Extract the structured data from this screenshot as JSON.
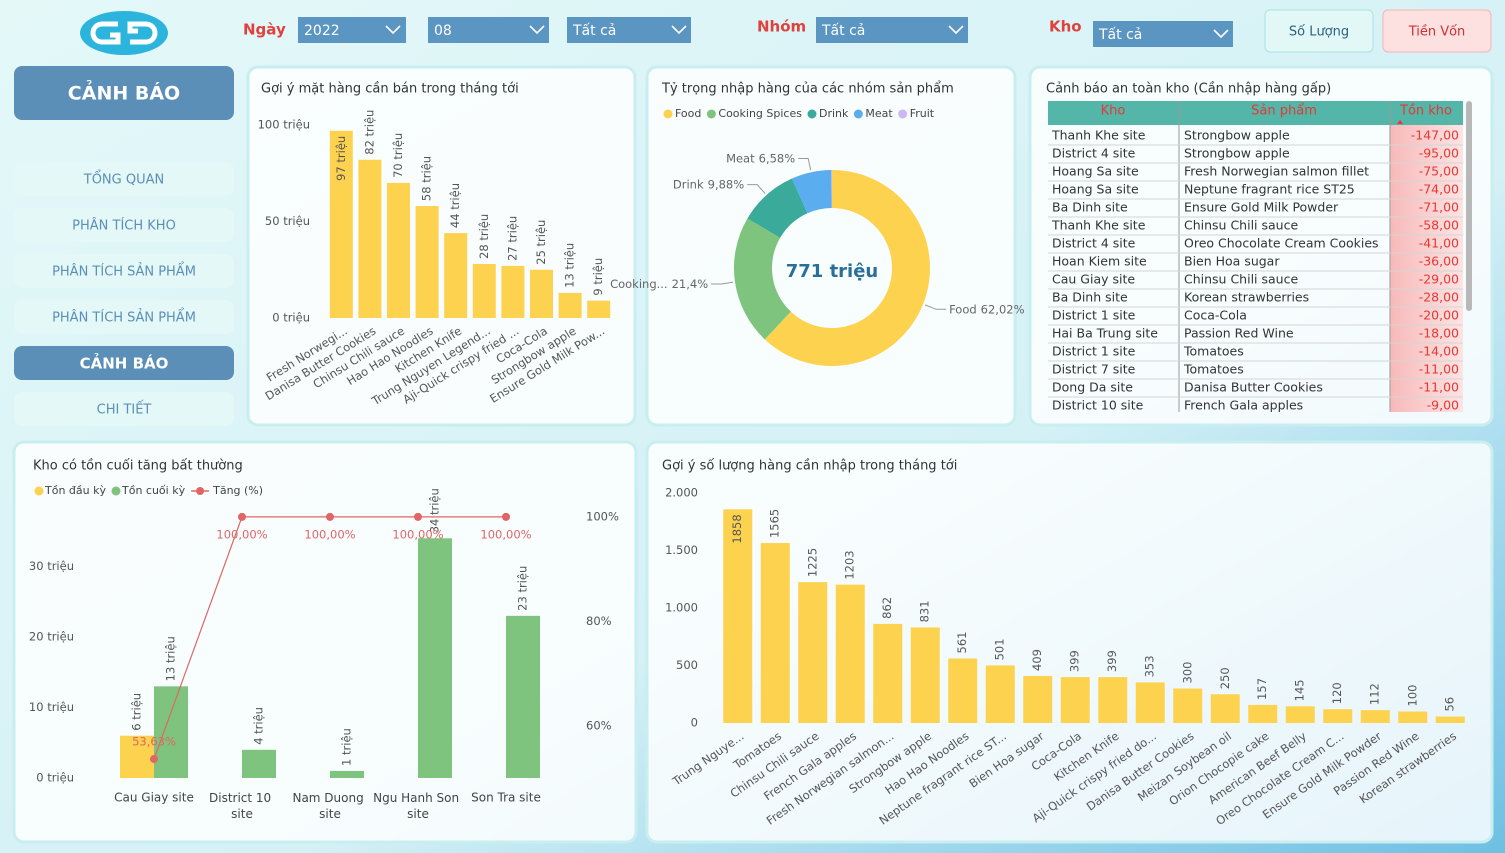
{
  "filters": {
    "date": {
      "label": "Ngày",
      "options": [
        "2022",
        "08",
        "Tất cả"
      ]
    },
    "group": {
      "label": "Nhóm",
      "value": "Tất cả"
    },
    "warehouse": {
      "label": "Kho",
      "value": "Tất cả"
    },
    "buttons": [
      "Số Lượng",
      "Tiền Vốn"
    ]
  },
  "nav": {
    "header": "CẢNH BÁO",
    "items": [
      "TỔNG QUAN",
      "PHÂN TÍCH KHO",
      "PHÂN TÍCH SẢN PHẨM",
      "PHÂN TÍCH SẢN PHẨM",
      "CẢNH BÁO",
      "CHI TIẾT"
    ]
  },
  "chart_data": [
    {
      "type": "bar",
      "title": "Gợi ý mặt hàng cần bán trong tháng tới",
      "categories": [
        "Fresh Norwegi...",
        "Danisa Butter Cookies",
        "Chinsu Chili sauce",
        "Hao Hao Noodles",
        "Kitchen Knife",
        "Trung Nguyen Legend...",
        "Aji-Quick crispy fried ...",
        "Coca-Cola",
        "Strongbow apple",
        "Ensure Gold Milk Pow..."
      ],
      "values": [
        97,
        82,
        70,
        58,
        44,
        28,
        27,
        25,
        13,
        9
      ],
      "value_labels": [
        "97 triệu",
        "82 triệu",
        "70 triệu",
        "58 triệu",
        "44 triệu",
        "28 triệu",
        "27 triệu",
        "25 triệu",
        "13 triệu",
        "9 triệu"
      ],
      "color": "#fdd24f",
      "ylim": [
        0,
        100
      ],
      "yticks": [
        {
          "value": 0,
          "label": "0 triệu"
        },
        {
          "value": 50,
          "label": "50 triệu"
        },
        {
          "value": 100,
          "label": "100 triệu"
        }
      ]
    },
    {
      "type": "pie",
      "title": "Tỷ trọng nhập hàng của các nhóm sản phẩm",
      "categories": [
        "Food",
        "Cooking Spices",
        "Drink",
        "Meat",
        "Fruit"
      ],
      "values": [
        62.02,
        21.4,
        9.88,
        6.58,
        0.12
      ],
      "value_labels": [
        "62,02%",
        "21,4%",
        "9,88%",
        "6,58%",
        null
      ],
      "slice_labels": [
        "Food",
        "Cooking...",
        "Drink",
        "Meat",
        null
      ],
      "colors": [
        "#fdd24f",
        "#7fc47e",
        "#3aaa9a",
        "#5aaef0",
        "#c9b8f3"
      ],
      "center_label": "771 triệu"
    },
    {
      "type": "combo",
      "title": "Kho có tồn cuối tăng bất thường",
      "categories": [
        "Cau Giay site",
        "District 10 site",
        "Nam Duong site",
        "Ngu Hanh Son site",
        "Son Tra site"
      ],
      "series": [
        {
          "name": "Tồn đầu kỳ",
          "type": "bar",
          "color": "#fdd24f",
          "values": [
            6,
            null,
            null,
            null,
            null
          ],
          "value_labels": [
            "6 triệu",
            null,
            null,
            null,
            null
          ]
        },
        {
          "name": "Tồn cuối kỳ",
          "type": "bar",
          "color": "#7fc47e",
          "values": [
            13,
            4,
            1,
            34,
            23
          ],
          "value_labels": [
            "13 triệu",
            "4 triệu",
            "1 triệu",
            "34 triệu",
            "23 triệu"
          ]
        },
        {
          "name": "Tăng (%)",
          "type": "line",
          "axis": "y2",
          "color": "#e06666",
          "values": [
            53.63,
            100,
            100,
            100,
            100
          ],
          "value_labels": [
            "53,63%",
            "100,00%",
            "100,00%",
            "100,00%",
            "100,00%"
          ]
        }
      ],
      "ylim": [
        0,
        40
      ],
      "yticks": [
        {
          "value": 0,
          "label": "0 triệu"
        },
        {
          "value": 10,
          "label": "10 triệu"
        },
        {
          "value": 20,
          "label": "20 triệu"
        },
        {
          "value": 30,
          "label": "30 triệu"
        }
      ],
      "y2lim": [
        50,
        104
      ],
      "y2ticks": [
        {
          "value": 60,
          "label": "60%"
        },
        {
          "value": 80,
          "label": "80%"
        },
        {
          "value": 100,
          "label": "100%"
        }
      ]
    },
    {
      "type": "bar",
      "title": "Gợi ý số lượng hàng cần nhập trong tháng tới",
      "categories": [
        "Trung Nguye...",
        "Tomatoes",
        "Chinsu Chili sauce",
        "French Gala apples",
        "Fresh Norwegian salmon...",
        "Strongbow apple",
        "Hao Hao Noodles",
        "Neptune fragrant rice ST...",
        "Bien Hoa sugar",
        "Coca-Cola",
        "Kitchen Knife",
        "Aji-Quick crispy fried do...",
        "Danisa Butter Cookies",
        "Meizan Soybean oil",
        "Orion Chocopie cake",
        "American Beef Belly",
        "Oreo Chocolate Cream C...",
        "Ensure Gold Milk Powder",
        "Passion Red Wine",
        "Korean strawberries"
      ],
      "values": [
        1858,
        1565,
        1225,
        1203,
        862,
        831,
        561,
        501,
        409,
        399,
        399,
        353,
        300,
        250,
        157,
        145,
        120,
        112,
        100,
        56
      ],
      "color": "#fdd24f",
      "ylim": [
        0,
        2000
      ],
      "yticks": [
        0,
        500,
        {
          "value": 1000,
          "label": "1.000"
        },
        {
          "value": 1500,
          "label": "1.500"
        },
        {
          "value": 2000,
          "label": "2.000"
        }
      ]
    }
  ],
  "table": {
    "title": "Cảnh báo an toàn kho (Cần nhập hàng gấp)",
    "columns": [
      "Kho",
      "Sản phẩm",
      "Tồn kho"
    ],
    "rows": [
      [
        "Thanh Khe site",
        "Strongbow apple",
        "-147,00"
      ],
      [
        "District 4 site",
        "Strongbow apple",
        "-95,00"
      ],
      [
        "Hoang Sa site",
        "Fresh Norwegian salmon fillet",
        "-75,00"
      ],
      [
        "Hoang Sa site",
        "Neptune fragrant rice ST25",
        "-74,00"
      ],
      [
        "Ba Dinh site",
        "Ensure Gold Milk Powder",
        "-71,00"
      ],
      [
        "Thanh Khe site",
        "Chinsu Chili sauce",
        "-58,00"
      ],
      [
        "District 4 site",
        "Oreo Chocolate Cream Cookies",
        "-41,00"
      ],
      [
        "Hoan Kiem site",
        "Bien Hoa sugar",
        "-36,00"
      ],
      [
        "Cau Giay site",
        "Chinsu Chili sauce",
        "-29,00"
      ],
      [
        "Ba Dinh site",
        "Korean strawberries",
        "-28,00"
      ],
      [
        "District 1 site",
        "Coca-Cola",
        "-20,00"
      ],
      [
        "Hai Ba Trung site",
        "Passion Red Wine",
        "-18,00"
      ],
      [
        "District 1 site",
        "Tomatoes",
        "-14,00"
      ],
      [
        "District 7 site",
        "Tomatoes",
        "-11,00"
      ],
      [
        "Dong Da site",
        "Danisa Butter Cookies",
        "-11,00"
      ],
      [
        "District 10 site",
        "French Gala apples",
        "-9,00"
      ]
    ]
  }
}
